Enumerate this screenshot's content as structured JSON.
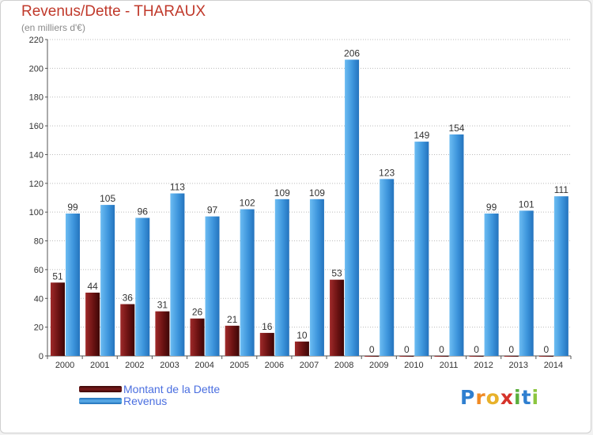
{
  "header": {
    "title": "Revenus/Dette - THARAUX",
    "subtitle": "(en milliers d'€)"
  },
  "colors": {
    "debt": "#7a1a1a",
    "revenue": "#3d95dc",
    "grid": "#bbbbbb",
    "title": "#c0392b"
  },
  "chart_data": {
    "type": "bar",
    "title": "Revenus/Dette - THARAUX",
    "subtitle": "(en milliers d'€)",
    "categories": [
      "2000",
      "2001",
      "2002",
      "2003",
      "2004",
      "2005",
      "2006",
      "2007",
      "2008",
      "2009",
      "2010",
      "2011",
      "2012",
      "2013",
      "2014"
    ],
    "series": [
      {
        "name": "Montant de la Dette",
        "values": [
          51,
          44,
          36,
          31,
          26,
          21,
          16,
          10,
          53,
          0,
          0,
          0,
          0,
          0,
          0
        ]
      },
      {
        "name": "Revenus",
        "values": [
          99,
          105,
          96,
          113,
          97,
          102,
          109,
          109,
          206,
          123,
          149,
          154,
          99,
          101,
          111
        ]
      }
    ],
    "ylim": [
      0,
      220
    ],
    "yticks": [
      0,
      20,
      40,
      60,
      80,
      100,
      120,
      140,
      160,
      180,
      200,
      220
    ],
    "grid": "horizontal dotted",
    "legend_position": "bottom-left"
  },
  "legend": {
    "items": [
      {
        "label": "Montant de la Dette"
      },
      {
        "label": "Revenus"
      }
    ]
  },
  "logo": {
    "letters": [
      "P",
      "r",
      "o",
      "x",
      "i",
      "t",
      "i"
    ],
    "colors": [
      "#2f7fd0",
      "#f08a24",
      "#e8b12a",
      "#d6332a",
      "#5aae3c",
      "#2f7fd0",
      "#8cc63f"
    ]
  }
}
